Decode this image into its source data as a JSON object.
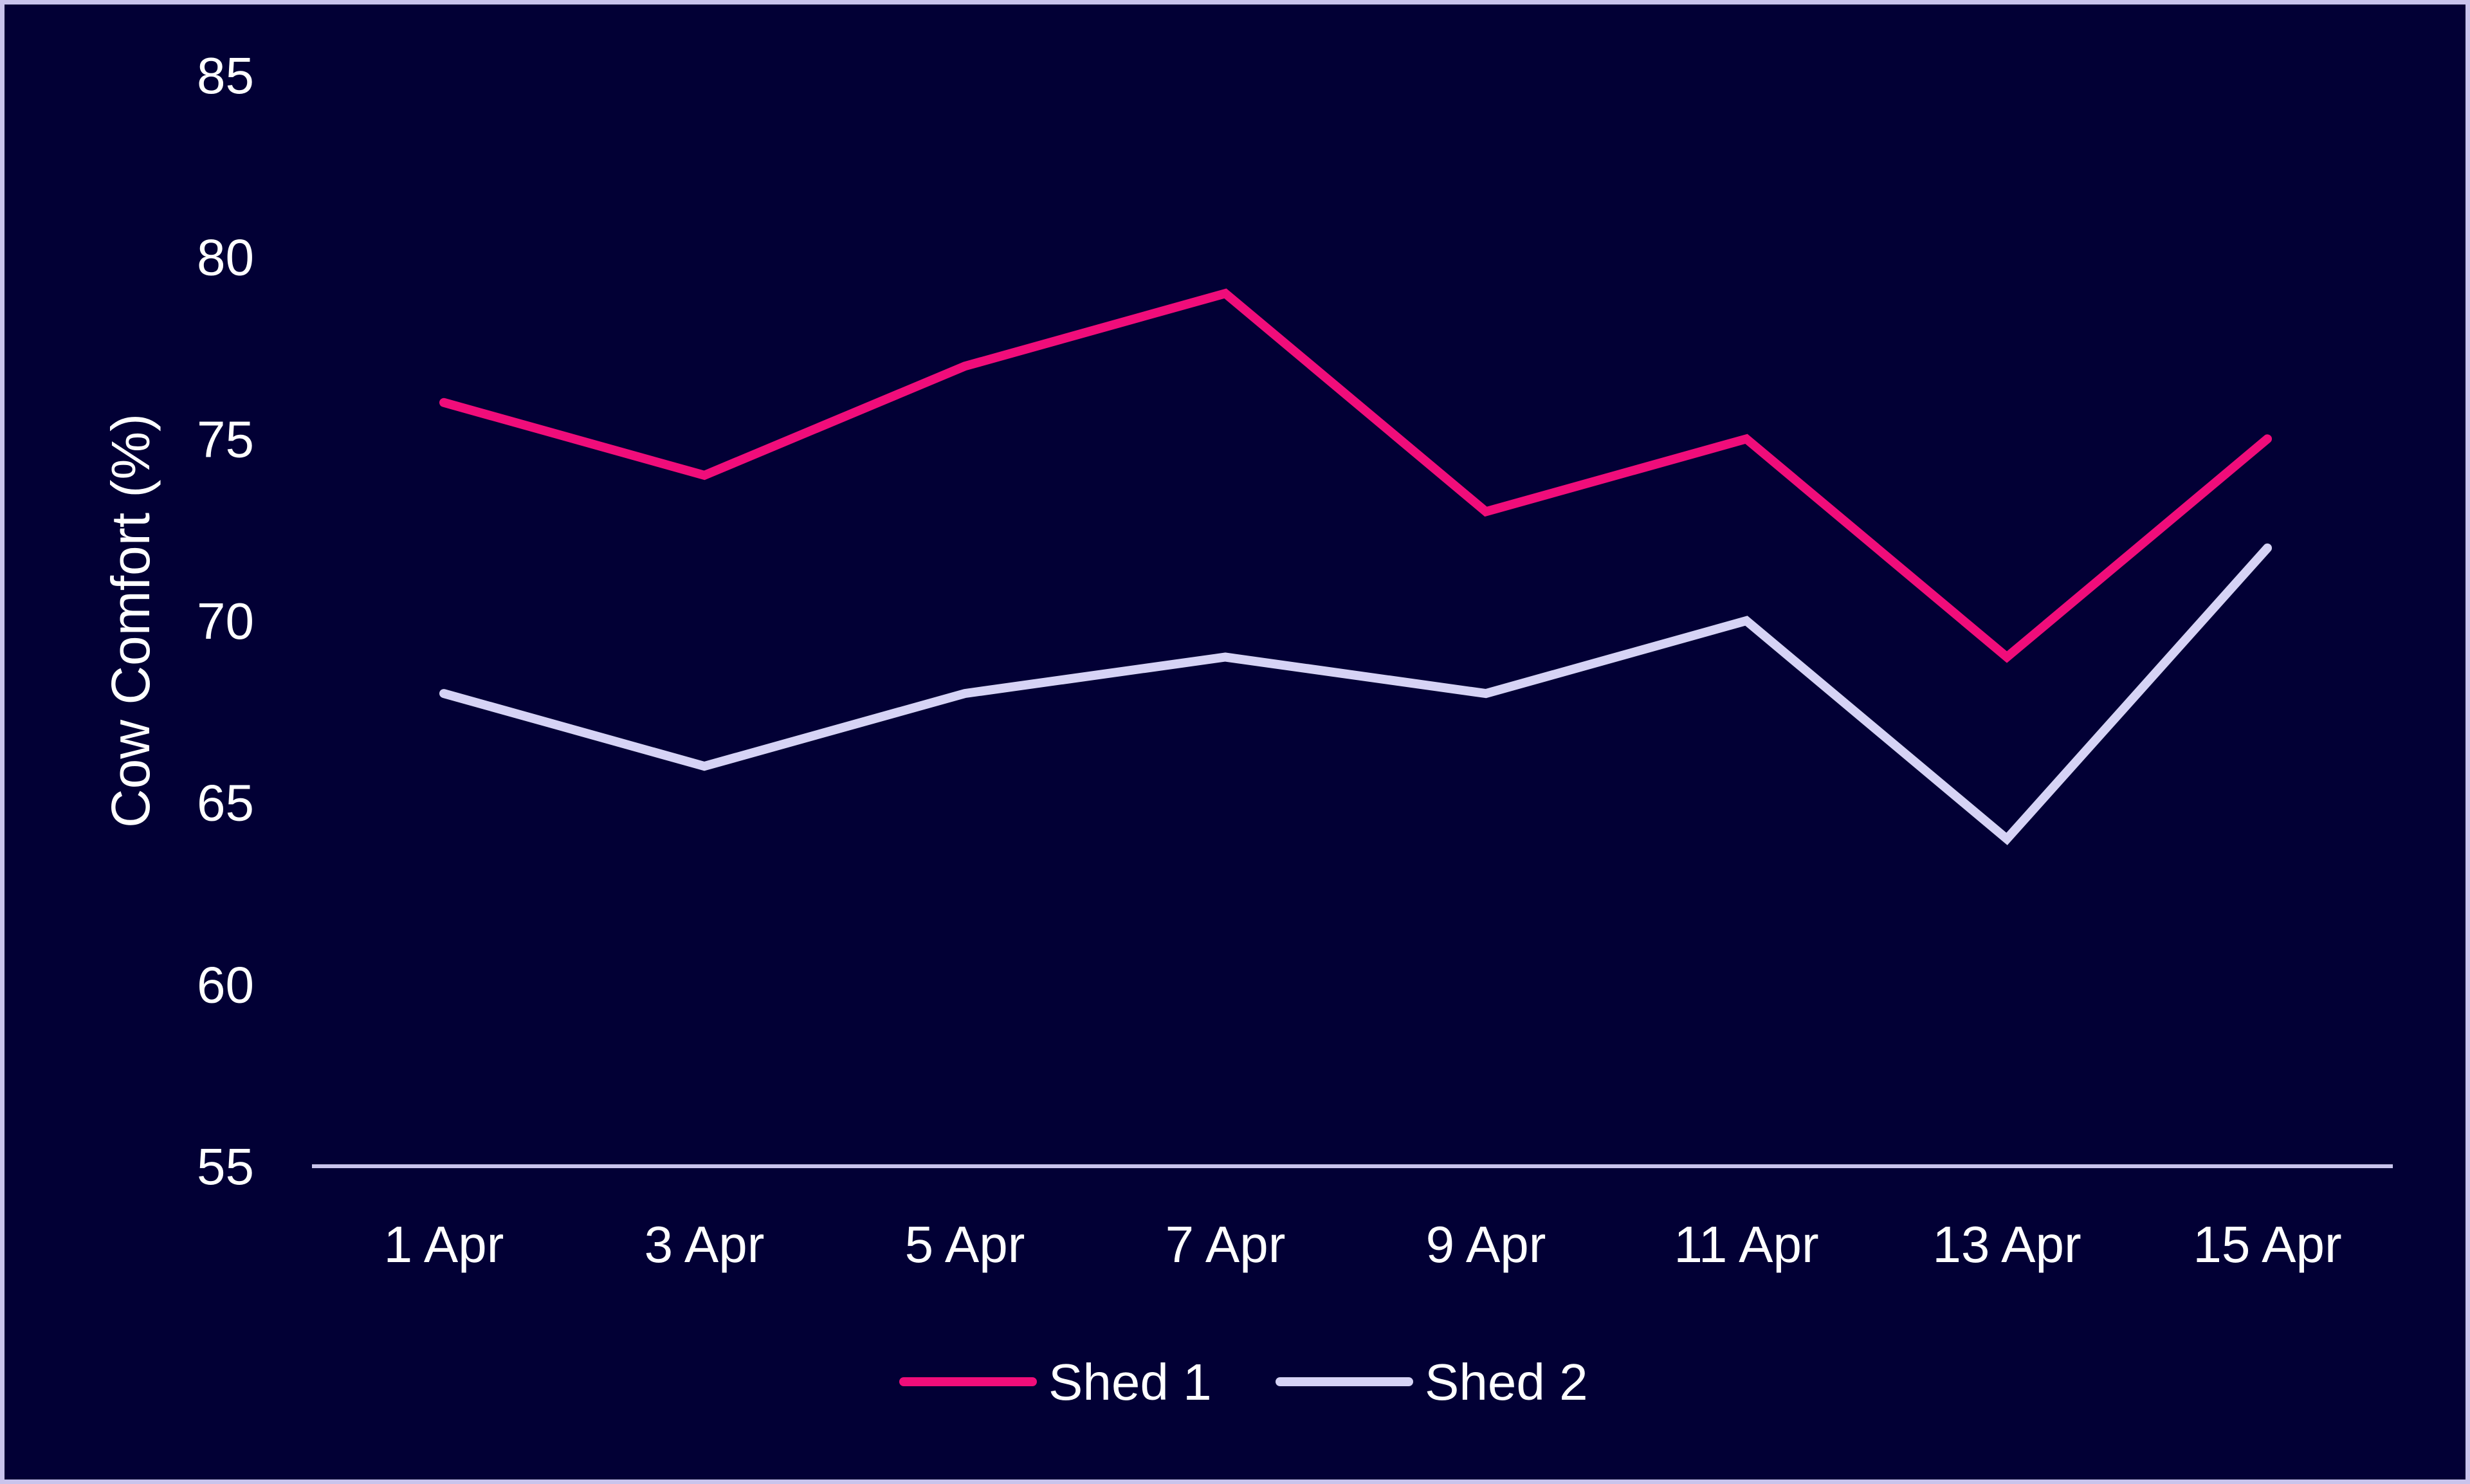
{
  "chart_data": {
    "type": "line",
    "title": "",
    "xlabel": "",
    "ylabel": "Cow Comfort (%)",
    "categories": [
      "1 Apr",
      "3 Apr",
      "5 Apr",
      "7 Apr",
      "9 Apr",
      "11 Apr",
      "13 Apr",
      "15 Apr"
    ],
    "yticks": [
      "85",
      "80",
      "75",
      "70",
      "65",
      "60",
      "55"
    ],
    "ylim": [
      55,
      85
    ],
    "grid": false,
    "legend": "bottom-center",
    "series": [
      {
        "name": "Shed 1",
        "color": "#f00d7a",
        "values": [
          76,
          74,
          77,
          79,
          73,
          75,
          69,
          75
        ]
      },
      {
        "name": "Shed 2",
        "color": "#d6d3f5",
        "values": [
          68,
          66,
          68,
          69,
          68,
          70,
          64,
          72
        ]
      }
    ],
    "axis_color": "#c9c4ec",
    "background": "#020035"
  }
}
